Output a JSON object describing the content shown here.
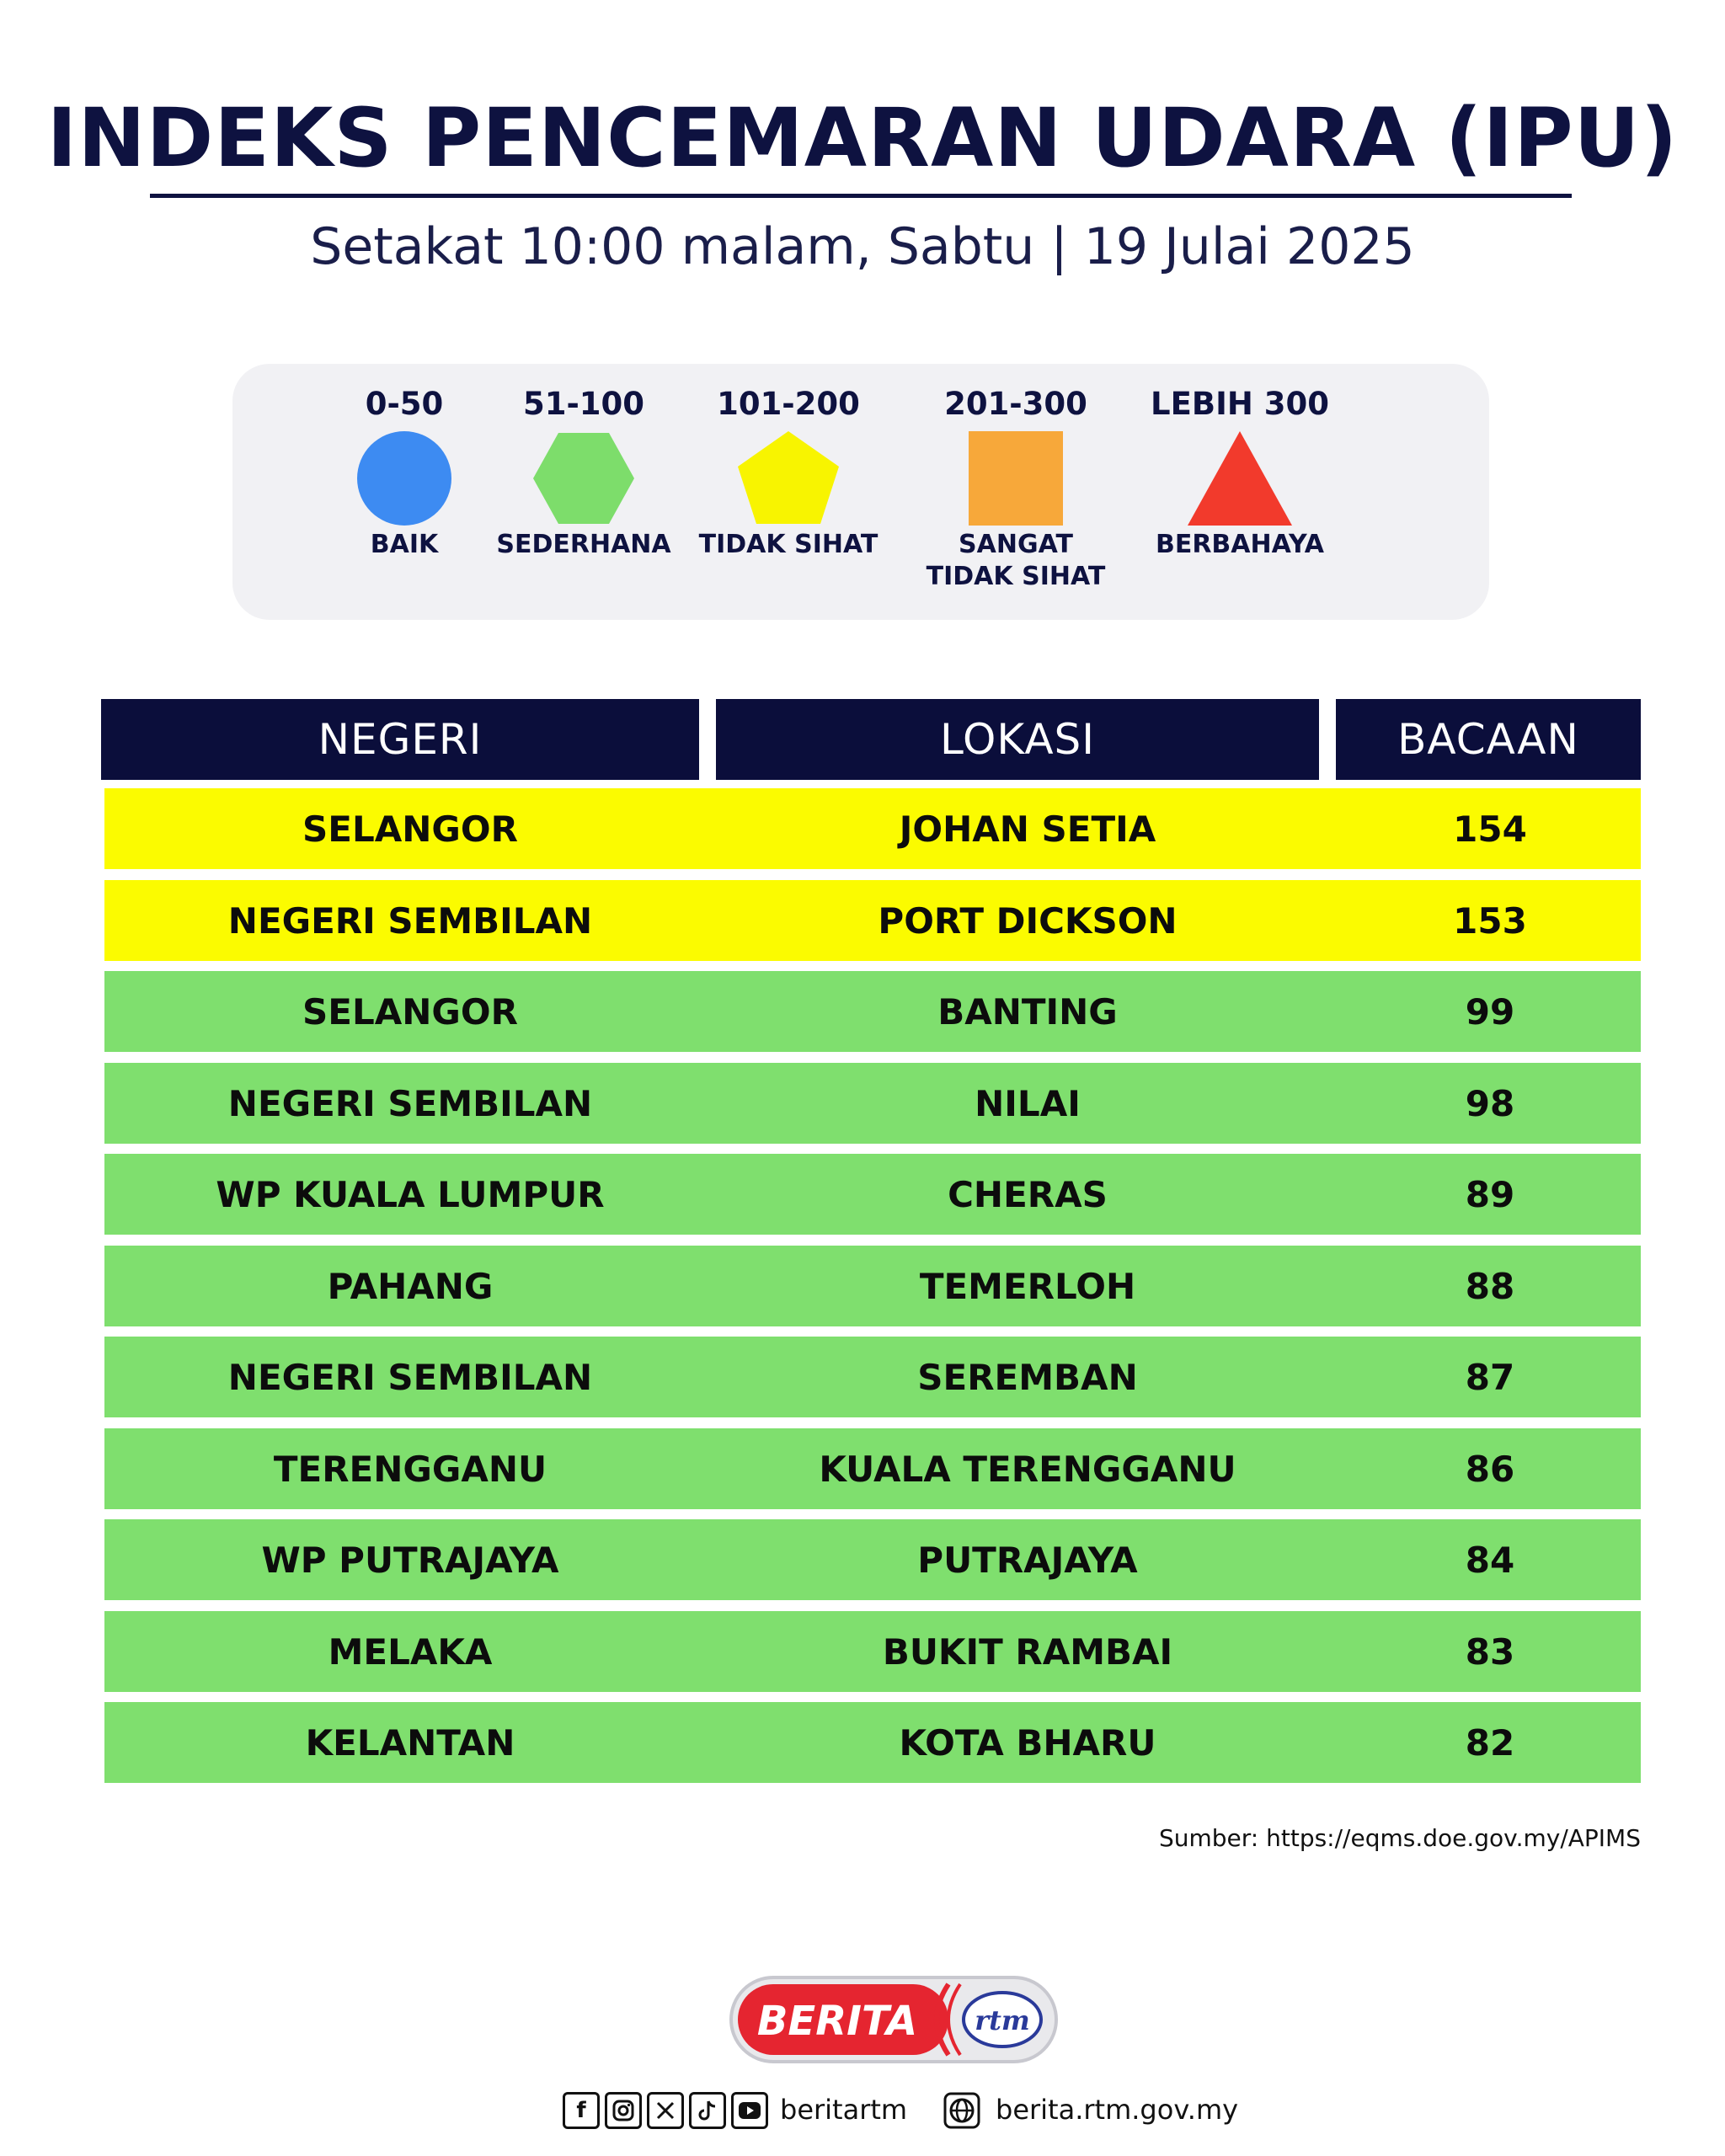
{
  "header": {
    "title": "INDEKS PENCEMARAN UDARA (IPU)",
    "subtitle": "Setakat 10:00 malam, Sabtu | 19 Julai 2025"
  },
  "legend": [
    {
      "range": "0-50",
      "label": "BAIK",
      "shape": "circle-icon",
      "color": "#3d8bf2"
    },
    {
      "range": "51-100",
      "label": "SEDERHANA",
      "shape": "hexagon-icon",
      "color": "#7ddd6b"
    },
    {
      "range": "101-200",
      "label": "TIDAK SIHAT",
      "shape": "pentagon-icon",
      "color": "#f8f400"
    },
    {
      "range": "201-300",
      "label": "SANGAT\nTIDAK SIHAT",
      "shape": "square-icon",
      "color": "#f7a83a"
    },
    {
      "range": "LEBIH 300",
      "label": "BERBAHAYA",
      "shape": "triangle-icon",
      "color": "#f23a2c"
    }
  ],
  "table": {
    "headers": [
      "NEGERI",
      "LOKASI",
      "BACAAN"
    ],
    "rows": [
      {
        "negeri": "SELANGOR",
        "lokasi": "JOHAN SETIA",
        "bacaan": "154",
        "color": "#fbfb00"
      },
      {
        "negeri": "NEGERI SEMBILAN",
        "lokasi": "PORT DICKSON",
        "bacaan": "153",
        "color": "#fbfb00"
      },
      {
        "negeri": "SELANGOR",
        "lokasi": "BANTING",
        "bacaan": "99",
        "color": "#7fdf6e"
      },
      {
        "negeri": "NEGERI SEMBILAN",
        "lokasi": "NILAI",
        "bacaan": "98",
        "color": "#7fdf6e"
      },
      {
        "negeri": "WP KUALA LUMPUR",
        "lokasi": "CHERAS",
        "bacaan": "89",
        "color": "#7fdf6e"
      },
      {
        "negeri": "PAHANG",
        "lokasi": "TEMERLOH",
        "bacaan": "88",
        "color": "#7fdf6e"
      },
      {
        "negeri": "NEGERI SEMBILAN",
        "lokasi": "SEREMBAN",
        "bacaan": "87",
        "color": "#7fdf6e"
      },
      {
        "negeri": "TERENGGANU",
        "lokasi": "KUALA TERENGGANU",
        "bacaan": "86",
        "color": "#7fdf6e"
      },
      {
        "negeri": "WP PUTRAJAYA",
        "lokasi": "PUTRAJAYA",
        "bacaan": "84",
        "color": "#7fdf6e"
      },
      {
        "negeri": "MELAKA",
        "lokasi": "BUKIT RAMBAI",
        "bacaan": "83",
        "color": "#7fdf6e"
      },
      {
        "negeri": "KELANTAN",
        "lokasi": "KOTA BHARU",
        "bacaan": "82",
        "color": "#7fdf6e"
      }
    ]
  },
  "source": "Sumber: https://eqms.doe.gov.my/APIMS",
  "logo": {
    "text": "BERITA",
    "mark": "rtm"
  },
  "footer": {
    "social_icons": [
      "facebook-icon",
      "instagram-icon",
      "x-icon",
      "tiktok-icon",
      "youtube-icon"
    ],
    "handle": "beritartm",
    "website": "berita.rtm.gov.my"
  }
}
